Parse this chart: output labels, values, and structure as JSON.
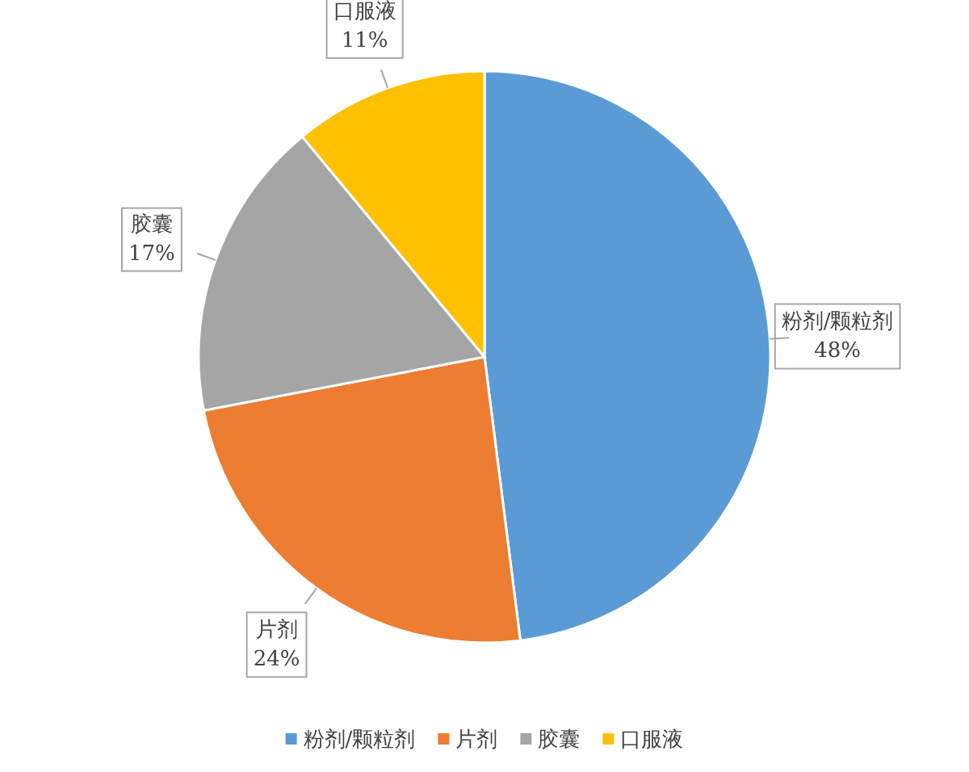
{
  "chart_data": {
    "type": "pie",
    "categories": [
      "粉剂/颗粒剂",
      "片剂",
      "胶囊",
      "口服液"
    ],
    "values": [
      48,
      24,
      17,
      11
    ],
    "value_labels": [
      "48%",
      "24%",
      "17%",
      "11%"
    ],
    "colors": [
      "#5b9bd5",
      "#ed7d31",
      "#a5a5a5",
      "#ffc000"
    ],
    "legend": "bottom"
  }
}
